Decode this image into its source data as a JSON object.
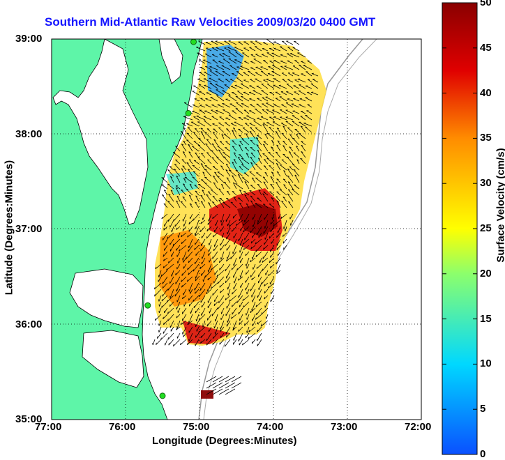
{
  "title": "Southern Mid-Atlantic Raw Velocities 2009/03/20 0400 GMT",
  "xlabel": "Longitude (Degrees:Minutes)",
  "ylabel": "Latitude (Degrees:Minutes)",
  "colorbar_label": "Surface Velocity (cm/s)",
  "x_ticks": [
    "77:00",
    "76:00",
    "75:00",
    "74:00",
    "73:00",
    "72:00"
  ],
  "y_ticks": [
    "39:00",
    "38:00",
    "37:00",
    "36:00",
    "35:00"
  ],
  "colorbar_ticks": [
    "50",
    "45",
    "40",
    "35",
    "30",
    "25",
    "20",
    "15",
    "10",
    "5",
    "0"
  ],
  "colors": {
    "land": "#5ef5a8",
    "water": "#ffffff",
    "title": "#1414ff",
    "arrows": "#000000",
    "colormap": [
      "#0a50ff",
      "#00d8ff",
      "#8cff6c",
      "#ffff00",
      "#ff8c00",
      "#e00000",
      "#8a0000"
    ]
  },
  "chart_data": {
    "type": "heatmap",
    "xlim": [
      -77,
      -72
    ],
    "ylim": [
      35,
      39
    ],
    "clim": [
      0,
      50
    ],
    "grid": true,
    "colorbar": "right",
    "station_markers": [
      {
        "lon": -75.08,
        "lat": 38.97
      },
      {
        "lon": -75.15,
        "lat": 38.22
      },
      {
        "lon": -75.7,
        "lat": 36.2
      },
      {
        "lon": -75.5,
        "lat": 35.25
      }
    ]
  }
}
